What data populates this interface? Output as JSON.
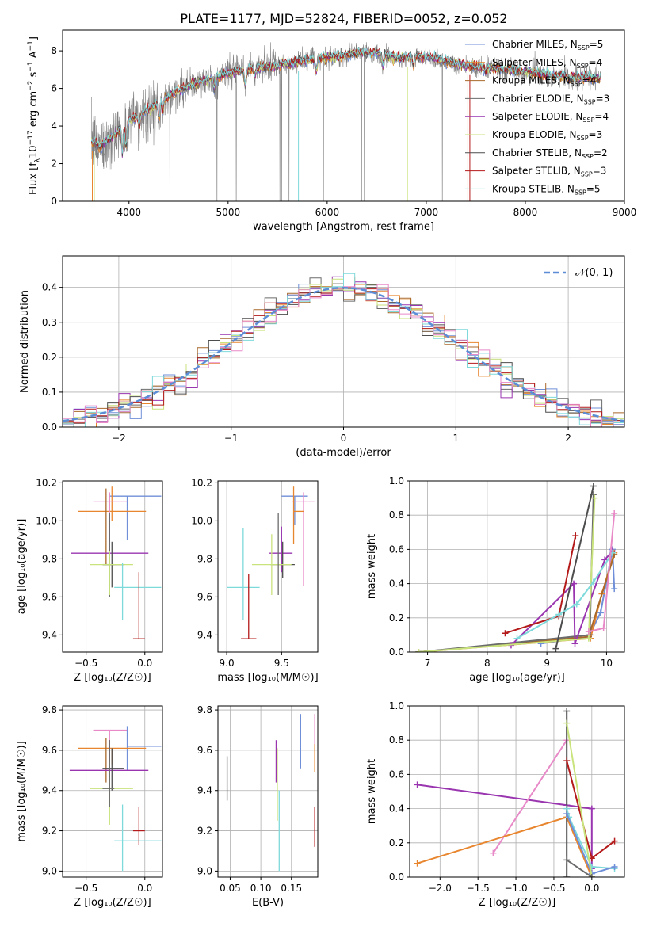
{
  "title": "PLATE=1177, MJD=52824, FIBERID=0052, z=0.052",
  "colors": {
    "Chabrier MILES": "#6f8fd8",
    "Salpeter MILES": "#e8862f",
    "Kroupa MILES": "#a8692a",
    "Chabrier ELODIE": "#6b6b6b",
    "Salpeter ELODIE": "#9a35b0",
    "Kroupa ELODIE": "#c9e37d",
    "Chabrier STELIB": "#4d4d4d",
    "Salpeter STELIB": "#b41a1a",
    "Kroupa STELIB": "#7ed9db",
    "data": "#808080",
    "normal": "#5b8dd6",
    "pink": "#e88ac8"
  },
  "chart_data": [
    {
      "id": "spectrum",
      "type": "line",
      "title": "PLATE=1177, MJD=52824, FIBERID=0052, z=0.052",
      "xlabel": "wavelength [Angstrom, rest frame]",
      "ylabel_parts": {
        "a": "Flux [f",
        "sub": "λ",
        "b": "10",
        "sup1": "−17",
        "c": " erg cm",
        "sup2": "−2",
        "d": " s",
        "sup3": "−1",
        "e": " A",
        "sup4": "−1",
        "f": "]"
      },
      "xlim": [
        3330,
        9000
      ],
      "ylim": [
        0,
        9.1
      ],
      "xticks": [
        4000,
        5000,
        6000,
        7000,
        8000,
        9000
      ],
      "yticks": [
        0,
        2,
        4,
        6,
        8
      ],
      "legend_position": "right",
      "legend": [
        {
          "name": "Chabrier MILES",
          "nssp": "5",
          "color": "#6f8fd8"
        },
        {
          "name": "Salpeter MILES",
          "nssp": "4",
          "color": "#e8862f"
        },
        {
          "name": "Kroupa MILES",
          "nssp": "4",
          "color": "#a8692a"
        },
        {
          "name": "Chabrier ELODIE",
          "nssp": "3",
          "color": "#6b6b6b"
        },
        {
          "name": "Salpeter ELODIE",
          "nssp": "4",
          "color": "#9a35b0"
        },
        {
          "name": "Kroupa ELODIE",
          "nssp": "3",
          "color": "#c9e37d"
        },
        {
          "name": "Chabrier STELIB",
          "nssp": "2",
          "color": "#4d4d4d"
        },
        {
          "name": "Salpeter STELIB",
          "nssp": "3",
          "color": "#b41a1a"
        },
        {
          "name": "Kroupa STELIB",
          "nssp": "5",
          "color": "#7ed9db"
        }
      ],
      "model_continuum": {
        "x": [
          3620,
          3700,
          3800,
          3900,
          4000,
          4100,
          4200,
          4300,
          4400,
          4500,
          4700,
          5000,
          5300,
          5600,
          5900,
          6100,
          6300,
          6500,
          6700,
          6900,
          7100,
          7300,
          7600,
          8000,
          8400,
          8800
        ],
        "y": [
          3.2,
          2.9,
          3.3,
          3.8,
          4.3,
          4.6,
          4.9,
          5.2,
          5.6,
          5.9,
          6.3,
          6.8,
          7.1,
          7.3,
          7.6,
          7.7,
          7.9,
          7.9,
          7.6,
          7.7,
          7.6,
          7.3,
          7.1,
          6.9,
          6.6,
          6.5
        ]
      }
    },
    {
      "id": "residuals",
      "type": "histogram",
      "xlabel": "(data-model)/error",
      "ylabel": "Normed distribution",
      "xlim": [
        -2.5,
        2.5
      ],
      "ylim": [
        0,
        0.49
      ],
      "xticks": [
        -2,
        -1,
        0,
        1,
        2
      ],
      "yticks": [
        0.0,
        0.1,
        0.2,
        0.3,
        0.4
      ],
      "legend_position": "top-right",
      "normal_label": "𝒩(0, 1)",
      "bin_width": 0.1
    },
    {
      "id": "age_vs_Z",
      "type": "scatter",
      "xlabel": "Z [log₁₀(Z/Z☉)]",
      "ylabel": "age  [log₁₀(age/yr)]",
      "xlim": [
        -0.7,
        0.15
      ],
      "ylim": [
        9.31,
        10.21
      ],
      "xticks": [
        -0.5,
        0.0
      ],
      "yticks": [
        9.4,
        9.6,
        9.8,
        10.0,
        10.2
      ],
      "points": [
        {
          "series": "Chabrier MILES",
          "x": -0.15,
          "xerr": [
            0.15,
            0.29
          ],
          "y": 10.13,
          "yerr": [
            0.23,
            0.0
          ]
        },
        {
          "series": "Salpeter MILES",
          "x": -0.28,
          "xerr": [
            0.29,
            0.29
          ],
          "y": 10.05,
          "yerr": [
            0.05,
            0.13
          ]
        },
        {
          "series": "pink",
          "x": -0.3,
          "xerr": [
            0.14,
            0.15
          ],
          "y": 10.1,
          "yerr": [
            0.44,
            0.05
          ]
        },
        {
          "series": "Kroupa MILES",
          "x": -0.33,
          "xerr": [
            0.0,
            0.0
          ],
          "y": 10.07,
          "yerr": [
            0.3,
            0.1
          ]
        },
        {
          "series": "Salpeter ELODIE",
          "x": -0.3,
          "xerr": [
            0.33,
            0.33
          ],
          "y": 9.83,
          "yerr": [
            0.16,
            0.2
          ]
        },
        {
          "series": "Chabrier STELIB",
          "x": -0.28,
          "xerr": [
            0.08,
            0.1
          ],
          "y": 9.77,
          "yerr": [
            0.12,
            0.12
          ]
        },
        {
          "series": "Chabrier ELODIE",
          "x": -0.3,
          "xerr": [
            0.06,
            0.04
          ],
          "y": 9.77,
          "yerr": [
            0.17,
            0.27
          ]
        },
        {
          "series": "Kroupa ELODIE",
          "x": -0.3,
          "xerr": [
            0.17,
            0.2
          ],
          "y": 9.77,
          "yerr": [
            0.16,
            0.07
          ]
        },
        {
          "series": "Kroupa STELIB",
          "x": -0.19,
          "xerr": [
            0.07,
            0.33
          ],
          "y": 9.65,
          "yerr": [
            0.17,
            0.13
          ]
        },
        {
          "series": "Salpeter STELIB",
          "x": -0.05,
          "xerr": [
            0.05,
            0.05
          ],
          "y": 9.38,
          "yerr": [
            0.0,
            0.35
          ]
        }
      ]
    },
    {
      "id": "age_vs_mass",
      "type": "scatter",
      "xlabel": "mass [log₁₀(M/M☉)]",
      "ylabel": "",
      "xlim": [
        8.92,
        9.83
      ],
      "ylim": [
        9.31,
        10.21
      ],
      "xticks": [
        9.0,
        9.5
      ],
      "yticks": [
        9.4,
        9.6,
        9.8,
        10.0,
        10.2
      ],
      "points": [
        {
          "series": "Chabrier MILES",
          "x": 9.62,
          "xerr": [
            0.12,
            0.12
          ],
          "y": 10.13,
          "yerr": [
            0.15,
            0.0
          ]
        },
        {
          "series": "pink",
          "x": 9.7,
          "xerr": [
            0.1,
            0.1
          ],
          "y": 10.1,
          "yerr": [
            0.44,
            0.05
          ]
        },
        {
          "series": "Salpeter MILES",
          "x": 9.61,
          "xerr": [
            0.0,
            0.09
          ],
          "y": 10.05,
          "yerr": [
            0.17,
            0.13
          ]
        },
        {
          "series": "Salpeter ELODIE",
          "x": 9.5,
          "xerr": [
            0.11,
            0.1
          ],
          "y": 9.83,
          "yerr": [
            0.1,
            0.14
          ]
        },
        {
          "series": "Chabrier STELIB",
          "x": 9.51,
          "xerr": [
            0.11,
            0.11
          ],
          "y": 9.77,
          "yerr": [
            0.07,
            0.12
          ]
        },
        {
          "series": "Kroupa ELODIE",
          "x": 9.41,
          "xerr": [
            0.18,
            0.18
          ],
          "y": 9.77,
          "yerr": [
            0.16,
            0.16
          ]
        },
        {
          "series": "Chabrier ELODIE",
          "x": 9.47,
          "xerr": [
            0.0,
            0.0
          ],
          "y": 9.77,
          "yerr": [
            0.16,
            0.27
          ]
        },
        {
          "series": "Kroupa STELIB",
          "x": 9.15,
          "xerr": [
            0.15,
            0.15
          ],
          "y": 9.65,
          "yerr": [
            0.17,
            0.31
          ]
        },
        {
          "series": "Salpeter STELIB",
          "x": 9.2,
          "xerr": [
            0.07,
            0.07
          ],
          "y": 9.38,
          "yerr": [
            0.0,
            0.34
          ]
        }
      ]
    },
    {
      "id": "weight_vs_age",
      "type": "line",
      "xlabel": "age  [log₁₀(age/yr)]",
      "ylabel": "mass weight",
      "xlim": [
        6.7,
        10.3
      ],
      "ylim": [
        0,
        1.0
      ],
      "xticks": [
        7,
        8,
        9,
        10
      ],
      "yticks": [
        0.0,
        0.2,
        0.4,
        0.6,
        0.8,
        1.0
      ],
      "series": [
        {
          "name": "Chabrier MILES",
          "x": [
            8.9,
            9.7,
            9.9,
            10.1,
            10.13
          ],
          "y": [
            0.05,
            0.09,
            0.23,
            0.6,
            0.37
          ]
        },
        {
          "name": "Salpeter MILES",
          "x": [
            6.85,
            9.73,
            9.92,
            10.13
          ],
          "y": [
            0.0,
            0.08,
            0.34,
            0.58
          ]
        },
        {
          "name": "Kroupa MILES",
          "x": [
            6.85,
            9.7,
            10.13
          ],
          "y": [
            0.0,
            0.09,
            0.57
          ]
        },
        {
          "name": "Chabrier ELODIE",
          "x": [
            6.85,
            9.72,
            9.78
          ],
          "y": [
            0.0,
            0.1,
            0.92
          ]
        },
        {
          "name": "Salpeter ELODIE",
          "x": [
            8.4,
            9.45,
            9.47,
            9.97,
            10.1
          ],
          "y": [
            0.04,
            0.4,
            0.05,
            0.54,
            0.59
          ]
        },
        {
          "name": "Kroupa ELODIE",
          "x": [
            6.85,
            9.7,
            9.8
          ],
          "y": [
            0.0,
            0.08,
            0.9
          ]
        },
        {
          "name": "Chabrier STELIB",
          "x": [
            9.15,
            9.78
          ],
          "y": [
            0.02,
            0.97
          ]
        },
        {
          "name": "Salpeter STELIB",
          "x": [
            8.3,
            9.2,
            9.48
          ],
          "y": [
            0.11,
            0.21,
            0.68
          ]
        },
        {
          "name": "Kroupa STELIB",
          "x": [
            8.5,
            9.2,
            9.5,
            9.78,
            10.1
          ],
          "y": [
            0.08,
            0.22,
            0.28,
            0.41,
            0.58
          ]
        },
        {
          "name": "pink",
          "x": [
            9.7,
            9.95,
            10.13
          ],
          "y": [
            0.12,
            0.14,
            0.81
          ]
        }
      ]
    },
    {
      "id": "mass_vs_Z",
      "type": "scatter",
      "xlabel": "Z [log₁₀(Z/Z☉)]",
      "ylabel": "mass [log₁₀(M/M☉)]",
      "xlim": [
        -0.7,
        0.15
      ],
      "ylim": [
        8.97,
        9.82
      ],
      "xticks": [
        -0.5,
        0.0
      ],
      "yticks": [
        9.0,
        9.2,
        9.4,
        9.6,
        9.8
      ],
      "points": [
        {
          "series": "pink",
          "x": -0.3,
          "xerr": [
            0.14,
            0.15
          ],
          "y": 9.7,
          "yerr": [
            0.16,
            0.0
          ]
        },
        {
          "series": "Chabrier MILES",
          "x": -0.15,
          "xerr": [
            0.0,
            0.29
          ],
          "y": 9.62,
          "yerr": [
            0.12,
            0.1
          ]
        },
        {
          "series": "Salpeter MILES",
          "x": -0.28,
          "xerr": [
            0.29,
            0.29
          ],
          "y": 9.61,
          "yerr": [
            0.08,
            0.0
          ]
        },
        {
          "series": "Kroupa MILES",
          "x": -0.33,
          "xerr": [
            0.0,
            0.0
          ],
          "y": 9.56,
          "yerr": [
            0.12,
            0.1
          ]
        },
        {
          "series": "Salpeter ELODIE",
          "x": -0.3,
          "xerr": [
            0.34,
            0.33
          ],
          "y": 9.5,
          "yerr": [
            0.14,
            0.15
          ]
        },
        {
          "series": "Chabrier STELIB",
          "x": -0.28,
          "xerr": [
            0.08,
            0.1
          ],
          "y": 9.51,
          "yerr": [
            0.11,
            0.1
          ]
        },
        {
          "series": "Kroupa ELODIE",
          "x": -0.3,
          "xerr": [
            0.17,
            0.2
          ],
          "y": 9.41,
          "yerr": [
            0.18,
            0.14
          ]
        },
        {
          "series": "Chabrier ELODIE",
          "x": -0.3,
          "xerr": [
            0.06,
            0.04
          ],
          "y": 9.41,
          "yerr": [
            0.09,
            0.24
          ]
        },
        {
          "series": "Kroupa STELIB",
          "x": -0.19,
          "xerr": [
            0.07,
            0.33
          ],
          "y": 9.15,
          "yerr": [
            0.15,
            0.18
          ]
        },
        {
          "series": "Salpeter STELIB",
          "x": -0.05,
          "xerr": [
            0.05,
            0.05
          ],
          "y": 9.2,
          "yerr": [
            0.07,
            0.12
          ]
        }
      ]
    },
    {
      "id": "mass_vs_EBV",
      "type": "scatter",
      "xlabel": "E(B-V)",
      "ylabel": "",
      "xlim": [
        0.03,
        0.193
      ],
      "ylim": [
        8.97,
        9.82
      ],
      "xticks": [
        0.05,
        0.1,
        0.15
      ],
      "yticks": [
        9.0,
        9.2,
        9.4,
        9.6,
        9.8
      ],
      "points": [
        {
          "series": "Chabrier STELIB",
          "x": 0.045,
          "y": 9.45,
          "yerr": [
            0.1,
            0.12
          ]
        },
        {
          "series": "Salpeter ELODIE",
          "x": 0.125,
          "y": 9.54,
          "yerr": [
            0.1,
            0.11
          ]
        },
        {
          "series": "Kroupa ELODIE",
          "x": 0.127,
          "y": 9.45,
          "yerr": [
            0.2,
            0.16
          ]
        },
        {
          "series": "Kroupa STELIB",
          "x": 0.13,
          "y": 9.2,
          "yerr": [
            0.2,
            0.2
          ]
        },
        {
          "series": "Chabrier MILES",
          "x": 0.165,
          "y": 9.64,
          "yerr": [
            0.13,
            0.14
          ]
        },
        {
          "series": "pink",
          "x": 0.188,
          "y": 9.7,
          "yerr": [
            0.1,
            0.08
          ]
        },
        {
          "series": "Salpeter MILES",
          "x": 0.188,
          "y": 9.58,
          "yerr": [
            0.09,
            0.05
          ]
        },
        {
          "series": "Salpeter STELIB",
          "x": 0.188,
          "y": 9.22,
          "yerr": [
            0.1,
            0.1
          ]
        }
      ]
    },
    {
      "id": "weight_vs_Z",
      "type": "line",
      "xlabel": "Z [log₁₀(Z/Z☉)]",
      "ylabel": "mass weight",
      "xlim": [
        -2.4,
        0.43
      ],
      "ylim": [
        0,
        1.0
      ],
      "xticks": [
        -2.0,
        -1.5,
        -1.0,
        -0.5,
        0.0
      ],
      "yticks": [
        0.0,
        0.2,
        0.4,
        0.6,
        0.8,
        1.0
      ],
      "series": [
        {
          "name": "Salpeter ELODIE",
          "x": [
            -2.3,
            -0.33,
            0.0,
            0.0
          ],
          "y": [
            0.54,
            0.42,
            0.4,
            0.05
          ]
        },
        {
          "name": "pink",
          "x": [
            -1.3,
            -0.33
          ],
          "y": [
            0.14,
            0.8
          ]
        },
        {
          "name": "Salpeter MILES",
          "x": [
            -2.3,
            -0.33,
            0.0
          ],
          "y": [
            0.08,
            0.35,
            0.0
          ]
        },
        {
          "name": "Chabrier STELIB",
          "x": [
            -0.33,
            -0.33
          ],
          "y": [
            0.0,
            0.97
          ]
        },
        {
          "name": "Salpeter STELIB",
          "x": [
            -0.33,
            0.0,
            0.3
          ],
          "y": [
            0.68,
            0.11,
            0.21
          ]
        },
        {
          "name": "Kroupa STELIB",
          "x": [
            -0.33,
            -0.3,
            0.0,
            0.3
          ],
          "y": [
            0.4,
            0.35,
            0.06,
            0.05
          ]
        },
        {
          "name": "Chabrier MILES",
          "x": [
            -0.33,
            0.0,
            0.3
          ],
          "y": [
            0.37,
            0.02,
            0.06
          ]
        },
        {
          "name": "Kroupa ELODIE",
          "x": [
            -0.33,
            0.0
          ],
          "y": [
            0.9,
            0.0
          ]
        },
        {
          "name": "Chabrier ELODIE",
          "x": [
            -0.33,
            0.0
          ],
          "y": [
            0.1,
            0.0
          ]
        }
      ]
    }
  ]
}
